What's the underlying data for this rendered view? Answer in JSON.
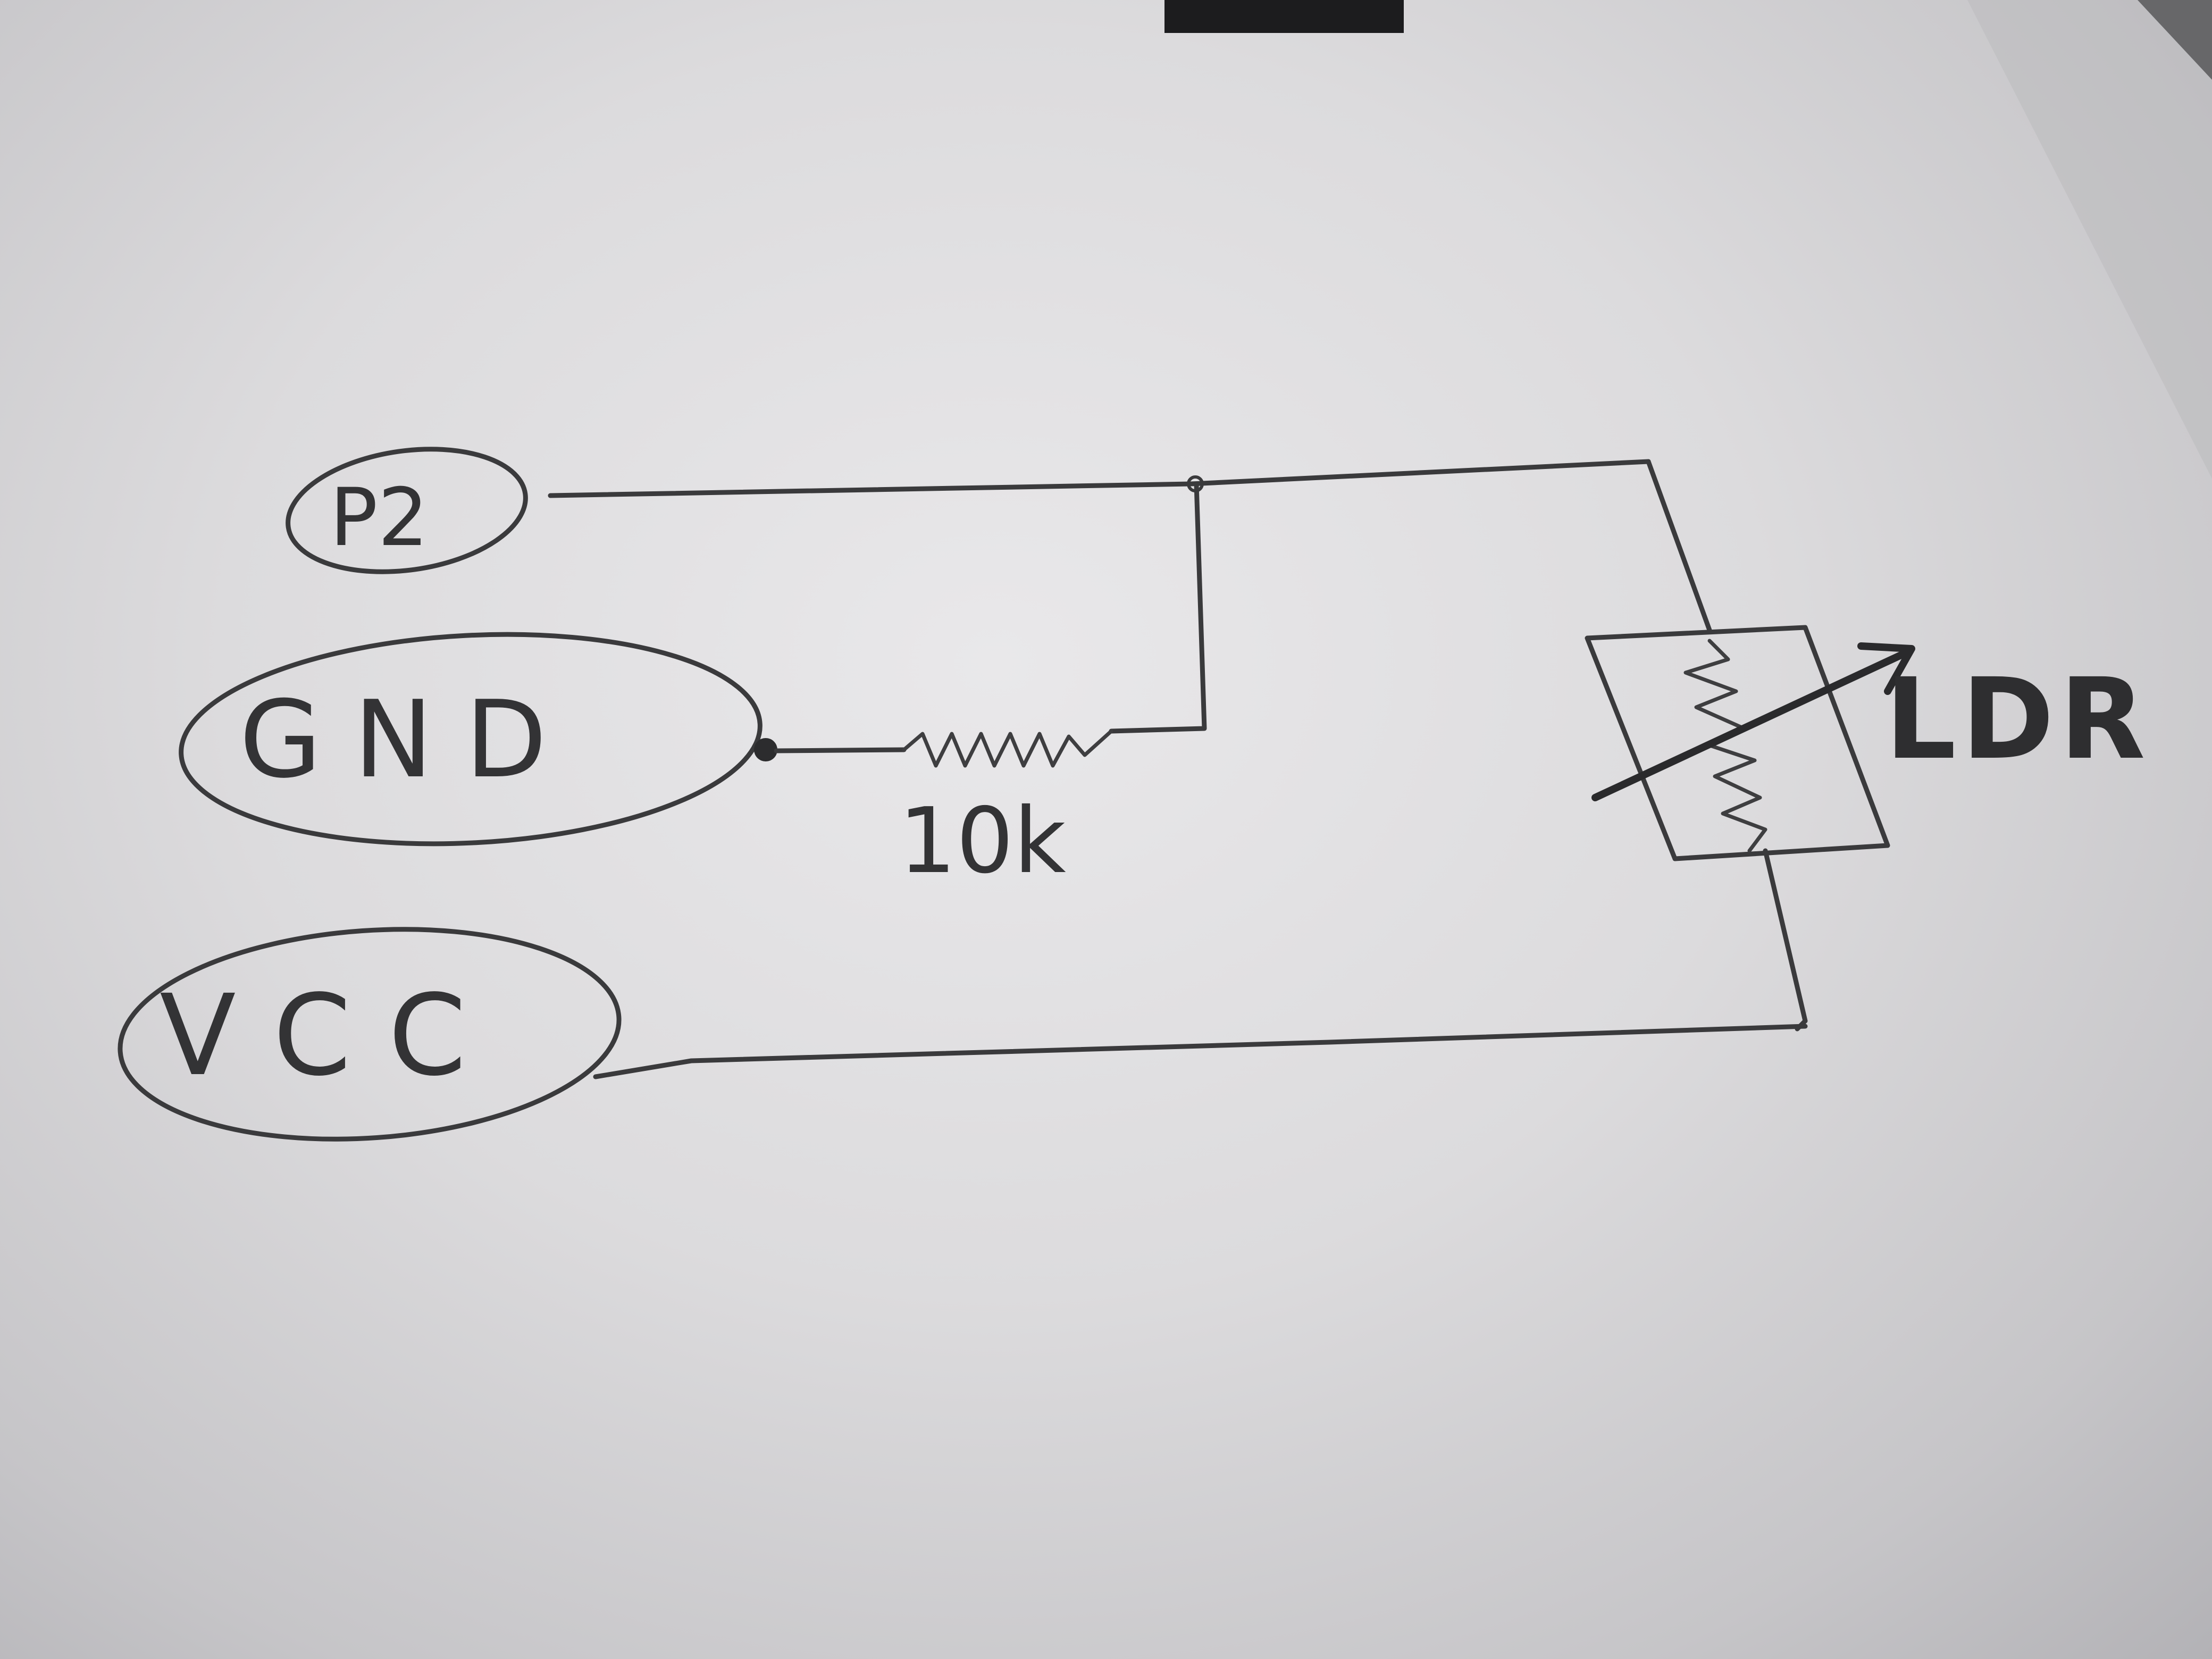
{
  "terminals": [
    {
      "id": "p2",
      "label": "P2"
    },
    {
      "id": "gnd",
      "label": "GND"
    },
    {
      "id": "vcc",
      "label": "VCC"
    }
  ],
  "resistor": {
    "value_label": "10k"
  },
  "ldr": {
    "label": "LDR"
  },
  "colors": {
    "pencil": "#3a3a3c",
    "paper": "#e3e2e4",
    "dark_object": "#1c1c1e"
  }
}
